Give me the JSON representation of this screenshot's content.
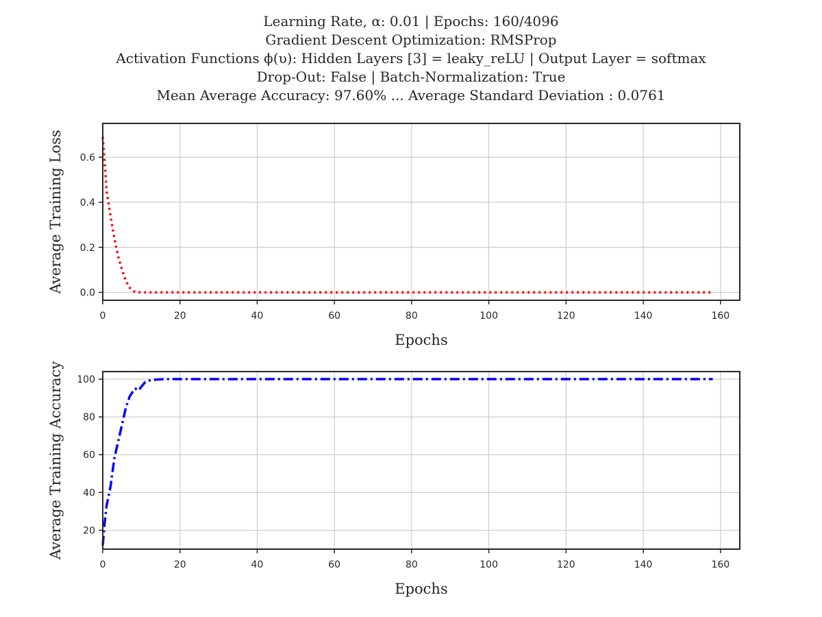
{
  "title_lines": [
    "Learning Rate, α: 0.01 | Epochs: 160/4096",
    "Gradient Descent Optimization: RMSProp",
    "Activation Functions ϕ(υ): Hidden Layers [3] = leaky_reLU | Output Layer = softmax",
    "Drop-Out: False | Batch-Normalization: True",
    "Mean Average Accuracy: 97.60% ... Average Standard Deviation : 0.0761"
  ],
  "chart_data": [
    {
      "type": "line",
      "name": "loss",
      "xlabel": "Epochs",
      "ylabel": "Average Training Loss",
      "xlim": [
        0,
        165
      ],
      "ylim": [
        -0.035,
        0.75
      ],
      "xticks": [
        0,
        20,
        40,
        60,
        80,
        100,
        120,
        140,
        160
      ],
      "yticks": [
        0.0,
        0.2,
        0.4,
        0.6
      ],
      "ytick_labels": [
        "0.0",
        "0.2",
        "0.4",
        "0.6"
      ],
      "grid": true,
      "series": [
        {
          "name": "Average Training Loss",
          "color": "#ff0000",
          "style": "dotted",
          "x": [
            0,
            0.5,
            1,
            2,
            3,
            4,
            5,
            6,
            7,
            8,
            9,
            10,
            12,
            15,
            20,
            40,
            60,
            80,
            100,
            120,
            140,
            158
          ],
          "y": [
            0.69,
            0.58,
            0.45,
            0.34,
            0.24,
            0.16,
            0.1,
            0.05,
            0.02,
            0.005,
            0.001,
            0.0,
            0.0,
            0.0,
            0.0,
            0.0,
            0.0,
            0.0,
            0.0,
            0.0,
            0.0,
            0.0
          ]
        }
      ]
    },
    {
      "type": "line",
      "name": "accuracy",
      "xlabel": "Epochs",
      "ylabel": "Average Training Accuracy",
      "xlim": [
        0,
        165
      ],
      "ylim": [
        10,
        104
      ],
      "xticks": [
        0,
        20,
        40,
        60,
        80,
        100,
        120,
        140,
        160
      ],
      "yticks": [
        20,
        40,
        60,
        80,
        100
      ],
      "ytick_labels": [
        "20",
        "40",
        "60",
        "80",
        "100"
      ],
      "grid": true,
      "series": [
        {
          "name": "Average Training Accuracy",
          "color": "#0000ff",
          "style": "dashdot",
          "x": [
            0,
            0.5,
            1,
            2,
            3,
            4,
            5,
            6,
            7,
            8,
            8.5,
            9,
            9.5,
            10,
            11,
            12,
            13,
            14,
            16,
            20,
            40,
            60,
            80,
            100,
            120,
            140,
            158
          ],
          "y": [
            12,
            24,
            33,
            43,
            58,
            67,
            76,
            85,
            91,
            94,
            95,
            94,
            94.5,
            96,
            98.5,
            99.2,
            99.6,
            99.8,
            100,
            100,
            100,
            100,
            100,
            100,
            100,
            100,
            100
          ]
        }
      ]
    }
  ]
}
